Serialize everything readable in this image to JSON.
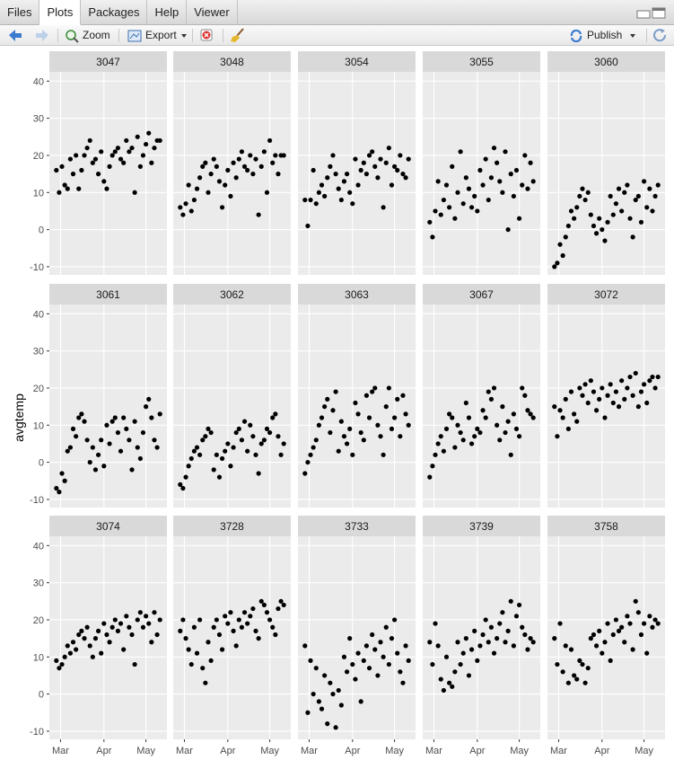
{
  "toolbar": {
    "tabs": [
      "Files",
      "Plots",
      "Packages",
      "Help",
      "Viewer"
    ],
    "buttons": {
      "zoom": "Zoom",
      "export": "Export",
      "publish": "Publish"
    }
  },
  "chart_data": {
    "type": "scatter",
    "y_label": "avgtemp",
    "color": "#000000",
    "grid": true,
    "xlim": [
      -8,
      76
    ],
    "xticks": [
      {
        "value": 0,
        "label": "Mar"
      },
      {
        "value": 31,
        "label": "Apr"
      },
      {
        "value": 61,
        "label": "May"
      }
    ],
    "ylim": [
      -12.2,
      42.5
    ],
    "yticks": [
      -10,
      0,
      10,
      20,
      30,
      40
    ],
    "x": [
      -3,
      -1,
      1,
      3,
      5,
      7,
      9,
      11,
      13,
      15,
      17,
      19,
      21,
      23,
      25,
      27,
      29,
      31,
      33,
      35,
      37,
      39,
      41,
      43,
      45,
      47,
      49,
      51,
      53,
      55,
      57,
      59,
      61,
      63,
      65,
      67,
      69,
      71
    ],
    "facets": [
      {
        "name": "3047",
        "values": [
          16,
          10,
          17,
          12,
          11,
          19,
          15,
          20,
          11,
          16,
          20,
          22,
          24,
          18,
          19,
          15,
          21,
          13,
          11,
          17,
          20,
          21,
          22,
          19,
          18,
          24,
          21,
          22,
          10,
          25,
          17,
          20,
          23,
          26,
          18,
          22,
          24,
          24
        ]
      },
      {
        "name": "3048",
        "values": [
          6,
          4,
          7,
          12,
          5,
          8,
          11,
          14,
          17,
          18,
          10,
          15,
          19,
          17,
          13,
          6,
          12,
          16,
          9,
          18,
          14,
          19,
          21,
          17,
          16,
          20,
          15,
          19,
          4,
          17,
          21,
          10,
          24,
          18,
          20,
          15,
          20,
          20
        ]
      },
      {
        "name": "3054",
        "values": [
          8,
          1,
          8,
          16,
          7,
          10,
          12,
          9,
          14,
          17,
          20,
          15,
          11,
          8,
          13,
          15,
          10,
          7,
          19,
          12,
          16,
          18,
          15,
          20,
          21,
          17,
          14,
          19,
          6,
          18,
          22,
          12,
          17,
          16,
          20,
          15,
          14,
          19
        ]
      },
      {
        "name": "3055",
        "values": [
          2,
          -2,
          5,
          13,
          4,
          8,
          12,
          6,
          17,
          3,
          10,
          21,
          7,
          14,
          11,
          6,
          9,
          5,
          16,
          12,
          19,
          8,
          14,
          22,
          18,
          13,
          10,
          21,
          0,
          15,
          9,
          16,
          3,
          12,
          20,
          11,
          18,
          13
        ]
      },
      {
        "name": "3060",
        "values": [
          -10,
          -9,
          -4,
          -7,
          -2,
          1,
          5,
          3,
          6,
          9,
          11,
          8,
          10,
          4,
          1,
          -1,
          3,
          0,
          -3,
          2,
          9,
          4,
          7,
          11,
          5,
          10,
          12,
          3,
          -2,
          8,
          9,
          2,
          13,
          6,
          11,
          5,
          9,
          12
        ]
      },
      {
        "name": "3061",
        "values": [
          -7,
          -8,
          -3,
          -5,
          3,
          4,
          9,
          7,
          12,
          13,
          11,
          6,
          0,
          4,
          -2,
          2,
          6,
          -1,
          10,
          5,
          11,
          12,
          8,
          3,
          12,
          9,
          6,
          -2,
          11,
          4,
          1,
          8,
          15,
          17,
          12,
          6,
          4,
          13
        ]
      },
      {
        "name": "3062",
        "values": [
          -6,
          -7,
          -4,
          -1,
          1,
          3,
          4,
          2,
          6,
          7,
          9,
          8,
          -2,
          2,
          -4,
          1,
          3,
          5,
          -1,
          4,
          8,
          9,
          6,
          11,
          3,
          10,
          7,
          2,
          -3,
          5,
          6,
          9,
          8,
          12,
          13,
          7,
          2,
          5
        ]
      },
      {
        "name": "3063",
        "values": [
          -3,
          0,
          2,
          4,
          6,
          10,
          12,
          15,
          17,
          8,
          14,
          19,
          3,
          11,
          7,
          5,
          9,
          2,
          16,
          13,
          8,
          6,
          18,
          12,
          19,
          20,
          10,
          7,
          2,
          15,
          20,
          9,
          12,
          17,
          7,
          18,
          13,
          10
        ]
      },
      {
        "name": "3067",
        "values": [
          -4,
          -1,
          2,
          5,
          7,
          3,
          9,
          13,
          12,
          4,
          10,
          8,
          6,
          16,
          12,
          5,
          7,
          9,
          8,
          14,
          12,
          19,
          17,
          20,
          10,
          6,
          15,
          8,
          11,
          2,
          13,
          9,
          7,
          20,
          18,
          14,
          13,
          12
        ]
      },
      {
        "name": "3072",
        "values": [
          15,
          7,
          14,
          12,
          17,
          9,
          19,
          13,
          11,
          20,
          18,
          21,
          16,
          22,
          19,
          14,
          17,
          20,
          12,
          18,
          21,
          16,
          19,
          15,
          22,
          17,
          20,
          23,
          18,
          24,
          15,
          19,
          21,
          16,
          22,
          23,
          20,
          23
        ]
      },
      {
        "name": "3074",
        "values": [
          9,
          7,
          8,
          10,
          13,
          11,
          14,
          12,
          16,
          17,
          15,
          18,
          13,
          10,
          15,
          17,
          11,
          19,
          16,
          14,
          18,
          20,
          17,
          19,
          12,
          21,
          18,
          16,
          8,
          20,
          22,
          18,
          21,
          19,
          14,
          22,
          16,
          20
        ]
      },
      {
        "name": "3728",
        "values": [
          17,
          20,
          15,
          12,
          8,
          18,
          11,
          20,
          7,
          3,
          14,
          9,
          18,
          20,
          16,
          12,
          21,
          19,
          22,
          17,
          13,
          20,
          18,
          22,
          19,
          21,
          23,
          17,
          15,
          25,
          24,
          22,
          20,
          18,
          16,
          23,
          25,
          24
        ]
      },
      {
        "name": "3733",
        "values": [
          13,
          -5,
          9,
          0,
          7,
          -2,
          -4,
          5,
          -8,
          3,
          0,
          -9,
          1,
          -3,
          10,
          6,
          15,
          8,
          4,
          11,
          -2,
          9,
          13,
          7,
          16,
          12,
          5,
          14,
          10,
          18,
          8,
          15,
          20,
          11,
          6,
          3,
          13,
          9
        ]
      },
      {
        "name": "3739",
        "values": [
          14,
          8,
          19,
          13,
          4,
          1,
          10,
          3,
          2,
          6,
          14,
          8,
          11,
          15,
          5,
          12,
          17,
          9,
          13,
          16,
          20,
          14,
          18,
          11,
          15,
          19,
          22,
          14,
          17,
          25,
          13,
          21,
          24,
          18,
          16,
          12,
          15,
          14
        ]
      },
      {
        "name": "3758",
        "values": [
          15,
          8,
          19,
          6,
          13,
          3,
          12,
          5,
          4,
          9,
          8,
          3,
          7,
          15,
          16,
          13,
          17,
          11,
          14,
          19,
          9,
          16,
          20,
          17,
          18,
          14,
          21,
          19,
          12,
          25,
          22,
          16,
          19,
          11,
          21,
          18,
          20,
          19
        ]
      }
    ]
  }
}
